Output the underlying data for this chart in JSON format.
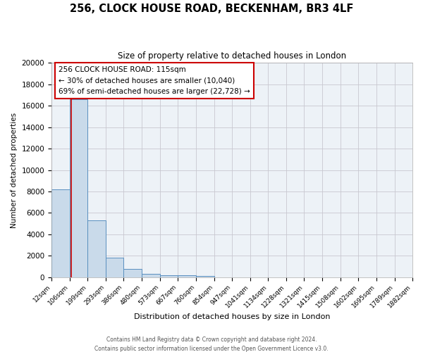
{
  "title": "256, CLOCK HOUSE ROAD, BECKENHAM, BR3 4LF",
  "subtitle": "Size of property relative to detached houses in London",
  "xlabel": "Distribution of detached houses by size in London",
  "ylabel": "Number of detached properties",
  "bar_color": "#c9daea",
  "bar_edge_color": "#5a8fbf",
  "background_color": "#edf2f7",
  "grid_color": "#c8c8d0",
  "bin_edges": [
    12,
    106,
    199,
    293,
    386,
    480,
    573,
    667,
    760,
    854,
    947,
    1041,
    1134,
    1228,
    1321,
    1415,
    1508,
    1602,
    1695,
    1789,
    1882
  ],
  "bin_labels": [
    "12sqm",
    "106sqm",
    "199sqm",
    "293sqm",
    "386sqm",
    "480sqm",
    "573sqm",
    "667sqm",
    "760sqm",
    "854sqm",
    "947sqm",
    "1041sqm",
    "1134sqm",
    "1228sqm",
    "1321sqm",
    "1415sqm",
    "1508sqm",
    "1602sqm",
    "1695sqm",
    "1789sqm",
    "1882sqm"
  ],
  "bar_heights": [
    8200,
    16600,
    5300,
    1800,
    750,
    300,
    200,
    150,
    100,
    0,
    0,
    0,
    0,
    0,
    0,
    0,
    0,
    0,
    0,
    0
  ],
  "ylim": [
    0,
    20000
  ],
  "yticks": [
    0,
    2000,
    4000,
    6000,
    8000,
    10000,
    12000,
    14000,
    16000,
    18000,
    20000
  ],
  "property_line_x": 115,
  "property_line_color": "#cc0000",
  "annotation_text_line1": "256 CLOCK HOUSE ROAD: 115sqm",
  "annotation_text_line2": "← 30% of detached houses are smaller (10,040)",
  "annotation_text_line3": "69% of semi-detached houses are larger (22,728) →",
  "footer_line1": "Contains HM Land Registry data © Crown copyright and database right 2024.",
  "footer_line2": "Contains public sector information licensed under the Open Government Licence v3.0."
}
